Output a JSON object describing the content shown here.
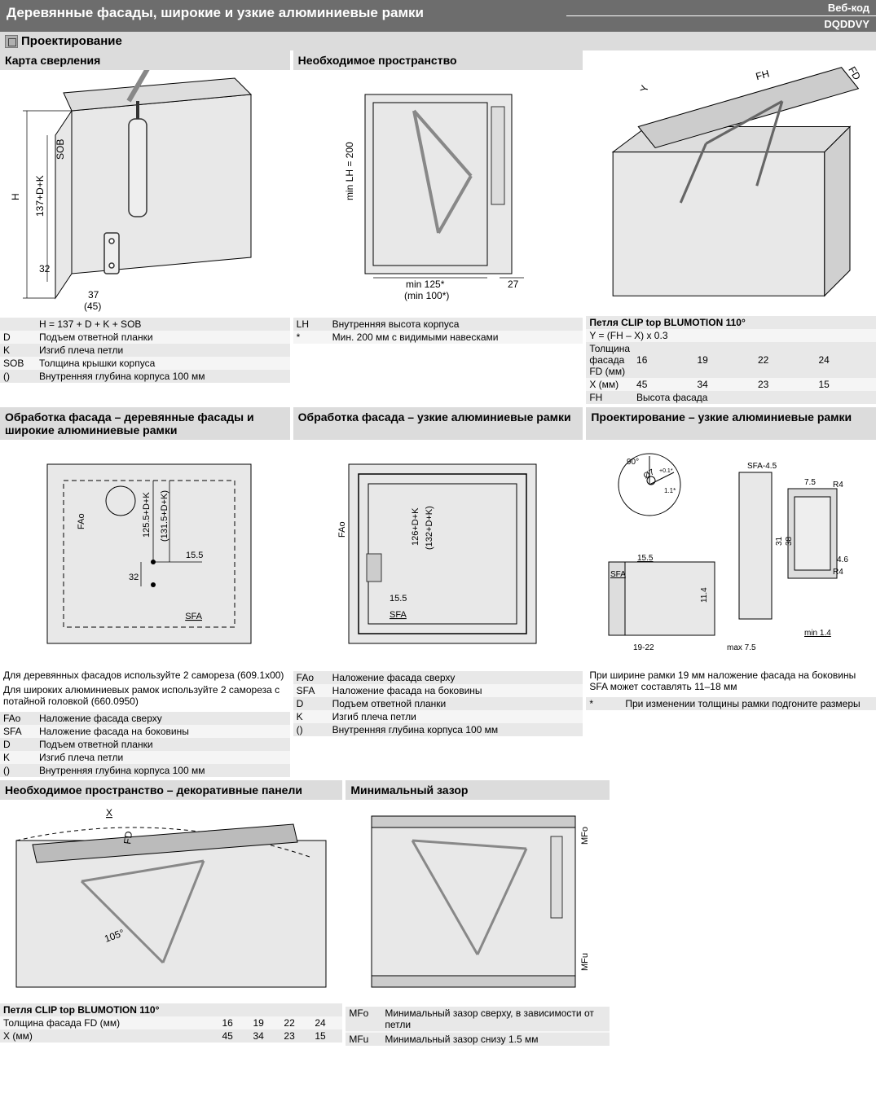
{
  "header": {
    "title": "Деревянные фасады, широкие и узкие алюминиевые рамки",
    "web_label": "Веб-код",
    "web_code": "DQDDVY"
  },
  "section_title": "Проектирование",
  "row1": {
    "c1": {
      "title": "Карта сверления",
      "dims": {
        "h": "H",
        "v137": "137+D+K",
        "sob": "SOB",
        "v32": "32",
        "v37": "37",
        "v45": "(45)"
      },
      "legend": [
        {
          "k": "",
          "v": "H = 137 + D + K + SOB"
        },
        {
          "k": "D",
          "v": "Подъем ответной планки"
        },
        {
          "k": "K",
          "v": "Изгиб плеча петли"
        },
        {
          "k": "SOB",
          "v": "Толщина крышки корпуса"
        },
        {
          "k": "()",
          "v": "Внутренняя глубина корпуса 100 мм"
        }
      ]
    },
    "c2": {
      "title": "Необходимое пространство",
      "dims": {
        "lh": "min LH = 200",
        "w1": "min 125*",
        "w2": "(min 100*)",
        "d27": "27"
      },
      "legend": [
        {
          "k": "LH",
          "v": "Внутренняя высота корпуса"
        },
        {
          "k": "*",
          "v": "Мин. 200 мм с видимыми навесками"
        }
      ]
    },
    "c3": {
      "dims": {
        "y": "Y",
        "fh": "FH",
        "fd": "FD"
      },
      "title": "Петля CLIP top BLUMOTION 110°",
      "formula": "Y = (FH – X) x 0.3",
      "tbl": {
        "r1_label": "Толщина фасада FD (мм)",
        "r1": [
          "16",
          "19",
          "22",
          "24"
        ],
        "r2_label": "X (мм)",
        "r2": [
          "45",
          "34",
          "23",
          "15"
        ],
        "r3_k": "FH",
        "r3_v": "Высота фасада"
      }
    }
  },
  "row2": {
    "c1": {
      "title": "Обработка фасада – деревянные фасады и широкие алюминиевые рамки",
      "dims": {
        "fao": "FAo",
        "v1": "125.5+D+K",
        "v2": "(131.5+D+K)",
        "h155": "15.5",
        "v32": "32",
        "sfa": "SFA"
      },
      "notes": [
        "Для деревянных фасадов используйте 2 самореза (609.1x00)",
        "Для широких алюминиевых рамок используйте 2 самореза с потайной головкой (660.0950)"
      ],
      "legend": [
        {
          "k": "FAo",
          "v": "Наложение фасада сверху"
        },
        {
          "k": "SFA",
          "v": "Наложение фасада на боковины"
        },
        {
          "k": "D",
          "v": "Подъем ответной планки"
        },
        {
          "k": "K",
          "v": "Изгиб плеча петли"
        },
        {
          "k": "()",
          "v": "Внутренняя глубина корпуса 100 мм"
        }
      ]
    },
    "c2": {
      "title": "Обработка фасада – узкие алюминиевые рамки",
      "dims": {
        "fao": "FAo",
        "v1": "126+D+K",
        "v2": "(132+D+K)",
        "h155": "15.5",
        "sfa": "SFA"
      },
      "legend": [
        {
          "k": "FAo",
          "v": "Наложение фасада сверху"
        },
        {
          "k": "SFA",
          "v": "Наложение фасада на боковины"
        },
        {
          "k": "D",
          "v": "Подъем ответной планки"
        },
        {
          "k": "K",
          "v": "Изгиб плеча петли"
        },
        {
          "k": "()",
          "v": "Внутренняя глубина корпуса 100 мм"
        }
      ]
    },
    "c3": {
      "title": "Проектирование – узкие алюминиевые рамки",
      "dims": {
        "ang": "90°",
        "dia": "Ø7",
        "tol": "+0.1*",
        "v11": "1.1*",
        "sfa45": "SFA-4.5",
        "r4": "R4",
        "v75": "7.5",
        "v31": "31",
        "v38": "38",
        "v46": "4.6",
        "v155": "15.5",
        "sfa": "SFA",
        "v114": "11.4",
        "w1922": "19-22",
        "max75": "max 7.5",
        "min14": "min 1.4"
      },
      "notes": [
        "При ширине рамки 19 мм наложение фасада на боковины SFA может составлять 11–18 мм"
      ],
      "legend": [
        {
          "k": "*",
          "v": "При изменении толщины рамки подгоните размеры"
        }
      ]
    }
  },
  "row3": {
    "c1": {
      "title": "Необходимое пространство – декоративные панели",
      "dims": {
        "x": "X",
        "fd": "FD",
        "ang": "105°"
      },
      "subtitle": "Петля CLIP top BLUMOTION 110°",
      "tbl": {
        "r1_label": "Толщина фасада FD (мм)",
        "r1": [
          "16",
          "19",
          "22",
          "24"
        ],
        "r2_label": "X (мм)",
        "r2": [
          "45",
          "34",
          "23",
          "15"
        ]
      }
    },
    "c2": {
      "title": "Минимальный зазор",
      "dims": {
        "mfo": "MFo",
        "mfu": "MFu"
      },
      "legend": [
        {
          "k": "MFo",
          "v": "Минимальный зазор сверху, в зависимости от петли"
        },
        {
          "k": "",
          "v": ""
        },
        {
          "k": "MFu",
          "v": "Минимальный зазор снизу 1.5 мм"
        }
      ]
    }
  },
  "colors": {
    "header_bg": "#6d6d6d",
    "section_bg": "#dcdcdc",
    "row_odd": "#e8e8e8",
    "row_even": "#f5f5f5",
    "stroke": "#000000",
    "fill_cab": "#e8e8e8"
  }
}
